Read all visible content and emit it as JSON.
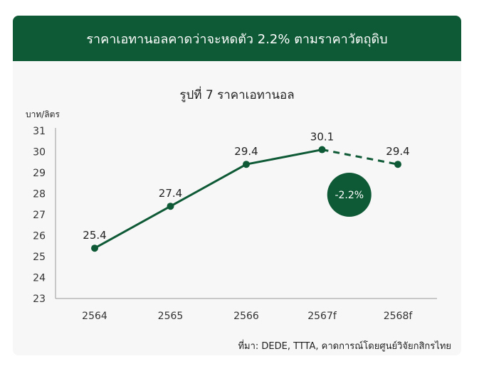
{
  "header": {
    "title": "ราคาเอทานอลคาดว่าจะหดตัว 2.2% ตามราคาวัตถุดิบ"
  },
  "chart_data": {
    "type": "line",
    "title": "รูปที่ 7 ราคาเอทานอล",
    "ylabel": "บาท/ลิตร",
    "xlabel": "",
    "categories": [
      "2564",
      "2565",
      "2566",
      "2567f",
      "2568f"
    ],
    "series": [
      {
        "values": [
          25.4,
          27.4,
          29.4,
          30.1,
          29.4
        ]
      }
    ],
    "data_labels": [
      "25.4",
      "27.4",
      "29.4",
      "30.1",
      "29.4"
    ],
    "forecast_segment": {
      "from": "2567f",
      "to": "2568f",
      "style": "dashed"
    },
    "ylim": [
      23,
      31
    ],
    "yticks": [
      23,
      24,
      25,
      26,
      27,
      28,
      29,
      30,
      31
    ],
    "grid": false,
    "annotation": {
      "text": "-2.2%",
      "near": "2567f-2568f"
    },
    "colors": {
      "line": "#0f5a36",
      "header": "#0f5a36",
      "badge": "#0f5a36"
    }
  },
  "source": "ที่มา: DEDE, TTTA, คาดการณ์โดยศูนย์วิจัยกสิกรไทย"
}
